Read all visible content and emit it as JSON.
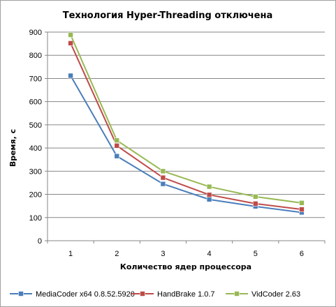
{
  "chart_data": {
    "type": "line",
    "title": "Технология Hyper-Threading отключена",
    "xlabel": "Количество  ядер процессора",
    "ylabel": "Время, с",
    "x": [
      "1",
      "2",
      "3",
      "4",
      "5",
      "6"
    ],
    "ylim": [
      0,
      900
    ],
    "yticks": [
      0,
      100,
      200,
      300,
      400,
      500,
      600,
      700,
      800,
      900
    ],
    "grid": true,
    "legend_position": "bottom",
    "series": [
      {
        "name": "MediaCoder x64 0.8.52.5920",
        "color": "#4a7ebb",
        "values": [
          712,
          365,
          245,
          178,
          148,
          122
        ]
      },
      {
        "name": "HandBrake 1.0.7",
        "color": "#be4b48",
        "values": [
          852,
          410,
          272,
          198,
          160,
          135
        ]
      },
      {
        "name": "VidCoder 2.63",
        "color": "#98b954",
        "values": [
          888,
          433,
          300,
          233,
          190,
          163
        ]
      }
    ]
  }
}
